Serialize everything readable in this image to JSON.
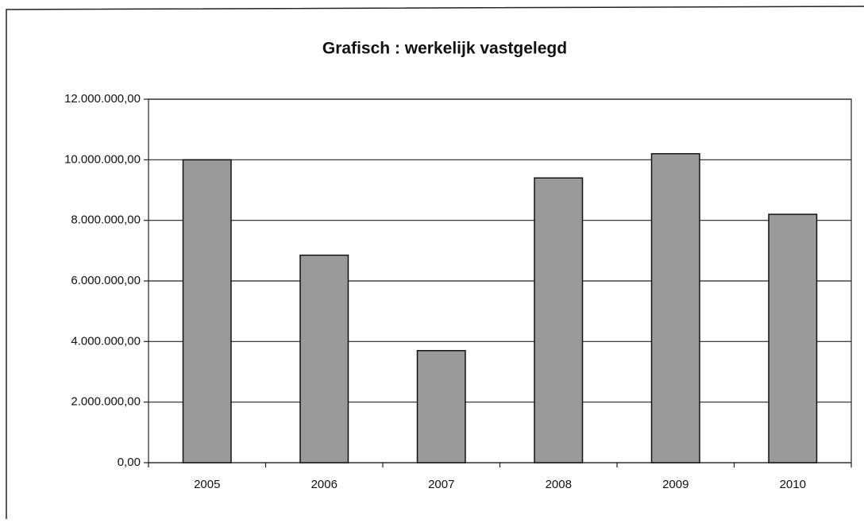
{
  "chart_data": {
    "type": "bar",
    "title": "Grafisch : werkelijk vastgelegd",
    "categories": [
      "2005",
      "2006",
      "2007",
      "2008",
      "2009",
      "2010"
    ],
    "values": [
      10000000,
      6850000,
      3700000,
      9400000,
      10200000,
      8200000
    ],
    "color": "#9a9a9a",
    "ylim": [
      0,
      12000000
    ],
    "yticks": [
      {
        "value": 0,
        "label": "0,00"
      },
      {
        "value": 2000000,
        "label": "2.000.000,00"
      },
      {
        "value": 4000000,
        "label": "4.000.000,00"
      },
      {
        "value": 6000000,
        "label": "6.000.000,00"
      },
      {
        "value": 8000000,
        "label": "8.000.000,00"
      },
      {
        "value": 10000000,
        "label": "10.000.000,00"
      },
      {
        "value": 12000000,
        "label": "12.000.000,00"
      }
    ],
    "grid": true
  }
}
